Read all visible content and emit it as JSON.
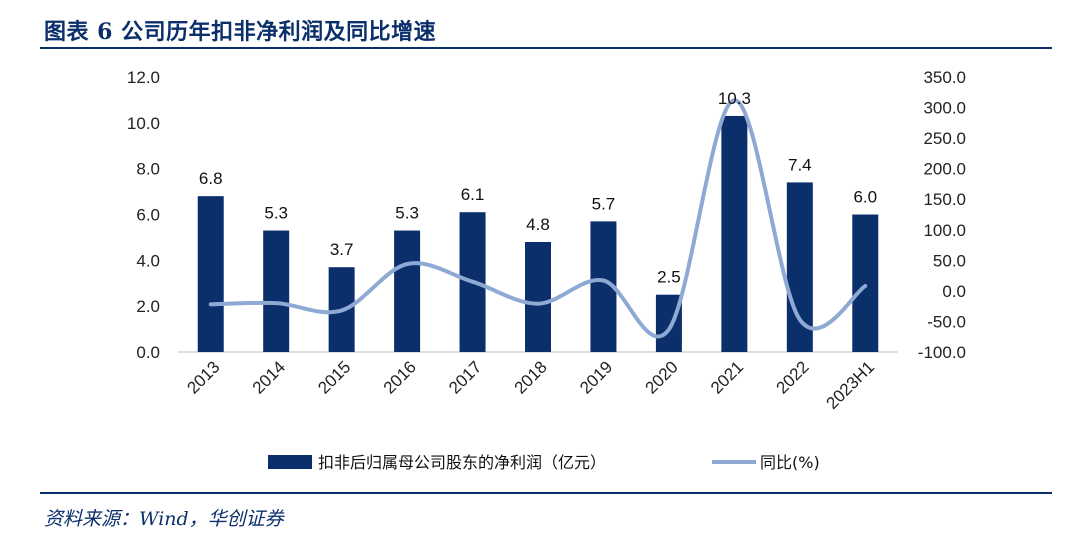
{
  "header": {
    "title": "图表 6 公司历年扣非净利润及同比增速"
  },
  "footer": {
    "source": "资料来源：Wind，华创证券"
  },
  "colors": {
    "bar": "#0b2f6b",
    "line": "#8ea9d4",
    "rule": "#0b2f6b",
    "title": "#0b2f6b"
  },
  "chart_data": {
    "type": "bar",
    "categories": [
      "2013",
      "2014",
      "2015",
      "2016",
      "2017",
      "2018",
      "2019",
      "2020",
      "2021",
      "2022",
      "2023H1"
    ],
    "series": [
      {
        "name": "扣非后归属母公司股东的净利润（亿元）",
        "type": "bar",
        "axis": "left",
        "values": [
          6.8,
          5.3,
          3.7,
          5.3,
          6.1,
          4.8,
          5.7,
          2.5,
          10.3,
          7.4,
          6.0
        ],
        "labels": [
          "6.8",
          "5.3",
          "3.7",
          "5.3",
          "6.1",
          "4.8",
          "5.7",
          "2.5",
          "10.3",
          "7.4",
          "6.0"
        ]
      },
      {
        "name": "同比(%)",
        "type": "line",
        "axis": "right",
        "smooth": true,
        "values": [
          -22,
          -20,
          -32,
          44,
          15,
          -21,
          17,
          -63,
          312,
          -47,
          8
        ]
      }
    ],
    "y_left": {
      "ylim": [
        0,
        12
      ],
      "ticks": [
        "0.0",
        "2.0",
        "4.0",
        "6.0",
        "8.0",
        "10.0",
        "12.0"
      ]
    },
    "y_right": {
      "ylim": [
        -100,
        350
      ],
      "ticks": [
        "-100.0",
        "-50.0",
        "0.0",
        "50.0",
        "100.0",
        "150.0",
        "200.0",
        "250.0",
        "300.0",
        "350.0"
      ]
    },
    "grid": false,
    "legend_position": "bottom"
  }
}
